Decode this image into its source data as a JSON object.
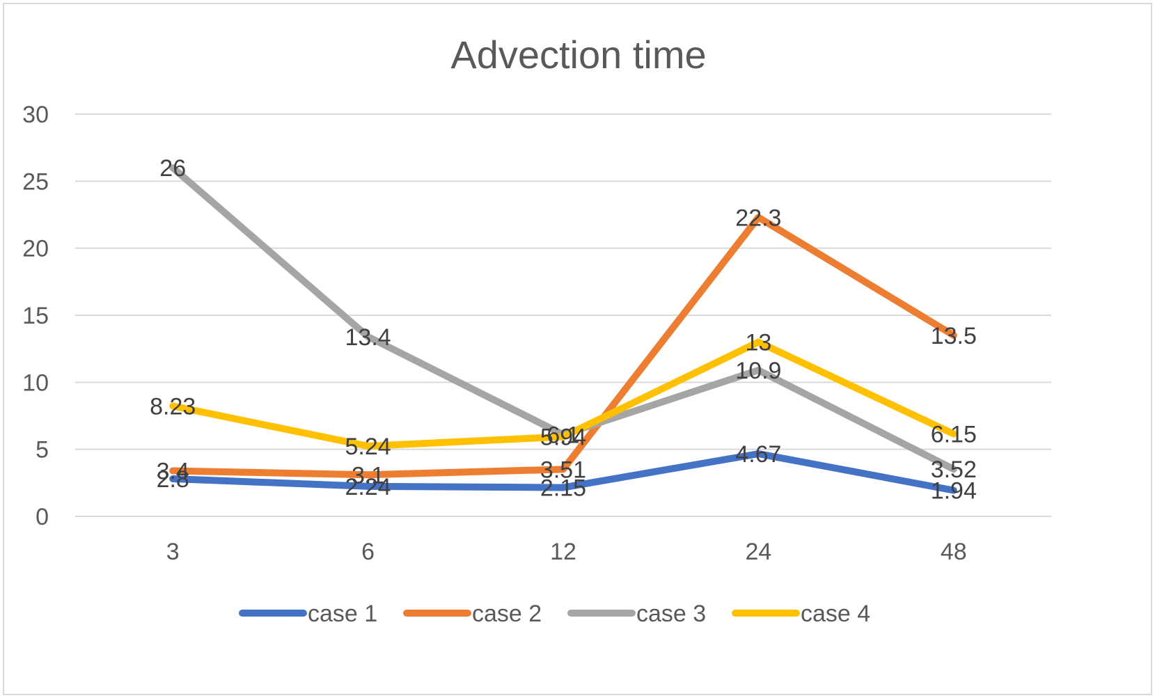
{
  "chart_data": {
    "type": "line",
    "title": "Advection time",
    "xlabel": "",
    "ylabel": "",
    "categories": [
      "3",
      "6",
      "12",
      "24",
      "48"
    ],
    "ylim": [
      0,
      30
    ],
    "yticks": [
      0,
      5,
      10,
      15,
      20,
      25,
      30
    ],
    "grid": true,
    "legend_position": "bottom",
    "series": [
      {
        "name": "case 1",
        "color": "#4472C4",
        "values": [
          2.8,
          2.24,
          2.15,
          4.67,
          1.94
        ]
      },
      {
        "name": "case 2",
        "color": "#ED7D31",
        "values": [
          3.4,
          3.1,
          3.51,
          22.3,
          13.5
        ]
      },
      {
        "name": "case 3",
        "color": "#A5A5A5",
        "values": [
          26,
          13.4,
          6.1,
          10.9,
          3.52
        ]
      },
      {
        "name": "case 4",
        "color": "#FFC000",
        "values": [
          8.23,
          5.24,
          5.94,
          13,
          6.15
        ]
      }
    ]
  }
}
